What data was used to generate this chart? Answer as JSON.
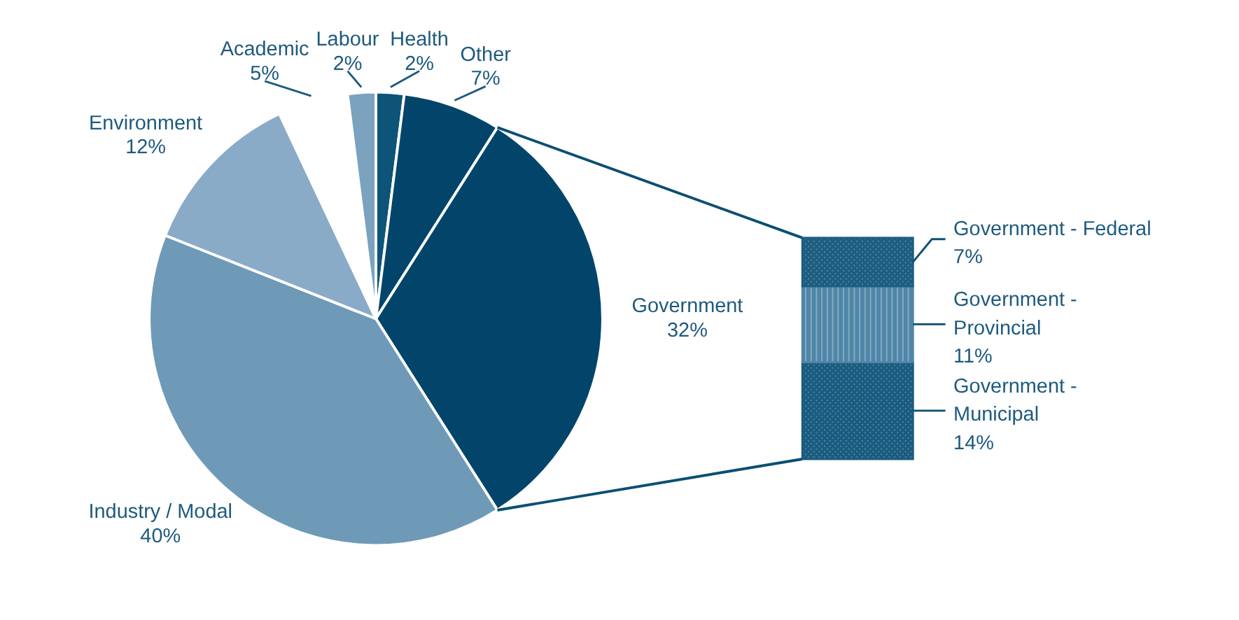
{
  "chart_data": [
    {
      "type": "pie",
      "categories": [
        "Health",
        "Other",
        "Government",
        "Industry / Modal",
        "Environment",
        "Academic",
        "Labour"
      ],
      "values": [
        2,
        7,
        32,
        40,
        12,
        5,
        2
      ],
      "value_labels": [
        "2%",
        "7%",
        "32%",
        "40%",
        "12%",
        "5%",
        "2%"
      ],
      "colors": [
        "#0d5478",
        "#03456a",
        "#03456a",
        "#6e9ab8",
        "#8aabc8",
        "#ffffff",
        "#7ba2bf"
      ]
    },
    {
      "type": "bar",
      "stacked": true,
      "categories": [
        null
      ],
      "series": [
        {
          "name": "Government - Municipal",
          "color": "#1a5c80",
          "values": [
            14
          ],
          "value_labels": [
            "14%"
          ]
        },
        {
          "name": "Government - Provincial",
          "color": "#4f86a8",
          "values": [
            11
          ],
          "value_labels": [
            "11%"
          ]
        },
        {
          "name": "Government - Federal",
          "color": "#1d5d80",
          "values": [
            7
          ],
          "value_labels": [
            "7%"
          ]
        }
      ]
    }
  ]
}
